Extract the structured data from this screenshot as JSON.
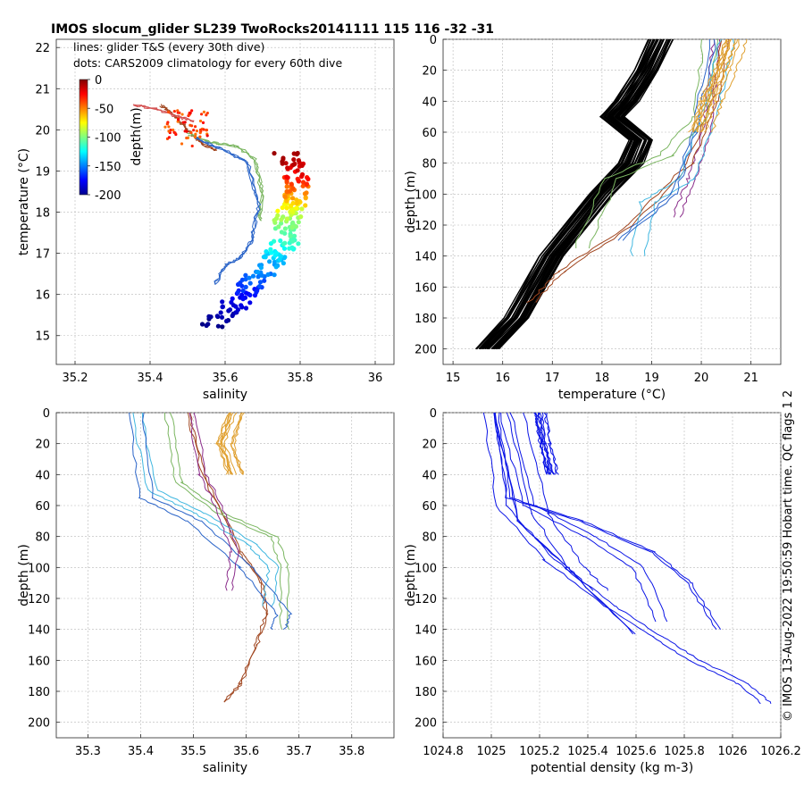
{
  "chart_data": {
    "title": "IMOS slocum_glider SL239 TwoRocks20141111 115  116  -32  -31",
    "side_note": "© IMOS 13-Aug-2022 19:50:59 Hobart time. QC flags 1  2",
    "panels": [
      {
        "id": "ts",
        "type": "scatter",
        "xlabel": "salinity",
        "ylabel": "temperature (°C)",
        "xlim": [
          35.15,
          36.05
        ],
        "ylim": [
          14.3,
          22.2
        ],
        "xticks": [
          35.2,
          35.4,
          35.6,
          35.8,
          36
        ],
        "xticklabels": [
          "35.2",
          "35.4",
          "35.6",
          "35.8",
          "36"
        ],
        "yticks": [
          15,
          16,
          17,
          18,
          19,
          20,
          21,
          22
        ],
        "yticklabels": [
          "15",
          "16",
          "17",
          "18",
          "19",
          "20",
          "21",
          "22"
        ],
        "legend_lines": [
          "lines: glider T&S (every 30th dive)",
          "dots: CARS2009 climatology for every 60th dive"
        ],
        "colorbar": {
          "label": "depth(m)",
          "ticks": [
            0,
            -50,
            -100,
            -150,
            -200
          ],
          "ticklabels": [
            "0",
            "-50",
            "-100",
            "-150",
            "-200"
          ],
          "colormap": "jet"
        },
        "climatology": [
          {
            "salinity": 35.57,
            "temperature": 15.25,
            "depth": -200
          },
          {
            "salinity": 35.62,
            "temperature": 15.7,
            "depth": -185
          },
          {
            "salinity": 35.66,
            "temperature": 16.1,
            "depth": -170
          },
          {
            "salinity": 35.7,
            "temperature": 16.5,
            "depth": -150
          },
          {
            "salinity": 35.73,
            "temperature": 16.9,
            "depth": -135
          },
          {
            "salinity": 35.76,
            "temperature": 17.3,
            "depth": -115
          },
          {
            "salinity": 35.76,
            "temperature": 17.7,
            "depth": -100
          },
          {
            "salinity": 35.77,
            "temperature": 18.0,
            "depth": -85
          },
          {
            "salinity": 35.78,
            "temperature": 18.3,
            "depth": -65
          },
          {
            "salinity": 35.79,
            "temperature": 18.6,
            "depth": -45
          },
          {
            "salinity": 35.79,
            "temperature": 19.0,
            "depth": -20
          },
          {
            "salinity": 35.76,
            "temperature": 19.4,
            "depth": -5
          }
        ],
        "glider_lines": [
          {
            "color": "#a0451e",
            "salinity": [
              35.43,
              35.47,
              35.5,
              35.52,
              35.55,
              35.58
            ],
            "temperature": [
              20.6,
              20.3,
              20.0,
              19.8,
              19.6,
              19.5
            ]
          },
          {
            "color": "#7bb661",
            "salinity": [
              35.5,
              35.56,
              35.63,
              35.68,
              35.7,
              35.69
            ],
            "temperature": [
              19.9,
              19.7,
              19.6,
              19.3,
              18.4,
              17.7
            ]
          },
          {
            "color": "#2a64c8",
            "salinity": [
              35.52,
              35.6,
              35.66,
              35.69,
              35.67,
              35.64,
              35.6,
              35.57
            ],
            "temperature": [
              19.8,
              19.5,
              19.2,
              18.2,
              17.3,
              16.9,
              16.7,
              16.2
            ]
          },
          {
            "color": "#d45050",
            "salinity": [
              35.36,
              35.42,
              35.48,
              35.52
            ],
            "temperature": [
              20.6,
              20.5,
              20.3,
              20.2
            ]
          }
        ]
      },
      {
        "id": "temp_depth",
        "type": "line",
        "xlabel": "temperature (°C)",
        "ylabel": "depth (m)",
        "xlim": [
          14.8,
          21.6
        ],
        "ylim": [
          0,
          210
        ],
        "yreversed": true,
        "xticks": [
          15,
          16,
          17,
          18,
          19,
          20,
          21
        ],
        "xticklabels": [
          "15",
          "16",
          "17",
          "18",
          "19",
          "20",
          "21"
        ],
        "yticks": [
          0,
          20,
          40,
          60,
          80,
          100,
          120,
          140,
          160,
          180,
          200
        ],
        "yticklabels": [
          "0",
          "20",
          "40",
          "60",
          "80",
          "100",
          "120",
          "140",
          "160",
          "180",
          "200"
        ],
        "climatology_profile": {
          "temperature": [
            19.2,
            18.9,
            18.5,
            18.2,
            18.8,
            18.6,
            18.0,
            17.0,
            16.3,
            15.7
          ],
          "depth": [
            0,
            20,
            40,
            50,
            65,
            80,
            100,
            140,
            180,
            200
          ]
        },
        "glider_profiles": [
          {
            "color": "#8b2d8b",
            "temperature": [
              20.4,
              20.3,
              20.2,
              19.9,
              19.6
            ],
            "depth": [
              0,
              30,
              60,
              90,
              115
            ]
          },
          {
            "color": "#a0451e",
            "temperature": [
              20.3,
              20.1,
              19.6,
              18.4,
              17.0,
              16.4
            ],
            "depth": [
              0,
              40,
              80,
              120,
              150,
              170
            ]
          },
          {
            "color": "#7bb661",
            "temperature": [
              20.2,
              20.0,
              19.3,
              18.2,
              17.6
            ],
            "depth": [
              0,
              50,
              75,
              90,
              135
            ]
          },
          {
            "color": "#40b7e0",
            "temperature": [
              20.6,
              20.3,
              19.8,
              19.0,
              18.8
            ],
            "depth": [
              0,
              40,
              90,
              105,
              140
            ]
          },
          {
            "color": "#2a64c8",
            "temperature": [
              20.4,
              20.0,
              19.6,
              18.5
            ],
            "depth": [
              0,
              60,
              100,
              130
            ]
          },
          {
            "color": "#e0a030",
            "temperature": [
              20.7,
              20.5,
              20.2,
              20.0
            ],
            "depth": [
              0,
              20,
              40,
              60
            ]
          }
        ]
      },
      {
        "id": "sal_depth",
        "type": "line",
        "xlabel": "salinity",
        "ylabel": "depth (m)",
        "xlim": [
          35.24,
          35.88
        ],
        "ylim": [
          0,
          210
        ],
        "yreversed": true,
        "xticks": [
          35.3,
          35.4,
          35.5,
          35.6,
          35.7,
          35.8
        ],
        "xticklabels": [
          "35.3",
          "35.4",
          "35.5",
          "35.6",
          "35.7",
          "35.8"
        ],
        "yticks": [
          0,
          20,
          40,
          60,
          80,
          100,
          120,
          140,
          160,
          180,
          200
        ],
        "yticklabels": [
          "0",
          "20",
          "40",
          "60",
          "80",
          "100",
          "120",
          "140",
          "160",
          "180",
          "200"
        ],
        "glider_profiles": [
          {
            "color": "#a0451e",
            "salinity": [
              35.5,
              35.53,
              35.6,
              35.64,
              35.65,
              35.63,
              35.6,
              35.57
            ],
            "depth": [
              0,
              40,
              90,
              110,
              130,
              150,
              175,
              187
            ]
          },
          {
            "color": "#7bb661",
            "salinity": [
              35.45,
              35.47,
              35.55,
              35.65,
              35.67,
              35.67
            ],
            "depth": [
              0,
              45,
              65,
              80,
              100,
              140
            ]
          },
          {
            "color": "#40b7e0",
            "salinity": [
              35.4,
              35.43,
              35.52,
              35.62,
              35.66,
              35.65
            ],
            "depth": [
              0,
              50,
              65,
              85,
              100,
              125
            ]
          },
          {
            "color": "#2a64c8",
            "salinity": [
              35.39,
              35.41,
              35.5,
              35.6,
              35.67,
              35.66
            ],
            "depth": [
              0,
              55,
              70,
              100,
              130,
              140
            ]
          },
          {
            "color": "#8b2d8b",
            "salinity": [
              35.5,
              35.52,
              35.55,
              35.58,
              35.57
            ],
            "depth": [
              0,
              40,
              60,
              90,
              115
            ]
          },
          {
            "color": "#e0a030",
            "salinity": [
              35.58,
              35.56,
              35.58
            ],
            "depth": [
              0,
              20,
              40
            ]
          }
        ]
      },
      {
        "id": "dens_depth",
        "type": "line",
        "xlabel": "potential density (kg m-3)",
        "ylabel": "depth (m)",
        "xlim": [
          1024.8,
          1026.2
        ],
        "ylim": [
          0,
          210
        ],
        "yreversed": true,
        "xticks": [
          1024.8,
          1025,
          1025.2,
          1025.4,
          1025.6,
          1025.8,
          1026,
          1026.2
        ],
        "xticklabels": [
          "1024.8",
          "1025",
          "1025.2",
          "1025.4",
          "1025.6",
          "1025.8",
          "1026",
          "1026.2"
        ],
        "yticks": [
          0,
          20,
          40,
          60,
          80,
          100,
          120,
          140,
          160,
          180,
          200
        ],
        "yticklabels": [
          "0",
          "20",
          "40",
          "60",
          "80",
          "100",
          "120",
          "140",
          "160",
          "180",
          "200"
        ],
        "glider_profiles": [
          {
            "color": "#0a14e6",
            "density": [
              1025.0,
              1025.05,
              1025.25,
              1025.5,
              1025.7,
              1025.85,
              1026.05,
              1026.15
            ],
            "depth": [
              0,
              60,
              95,
              125,
              145,
              160,
              175,
              188
            ]
          },
          {
            "color": "#0a14e6",
            "density": [
              1025.0,
              1025.05,
              1025.35,
              1025.65,
              1025.8,
              1025.92
            ],
            "depth": [
              0,
              55,
              70,
              90,
              110,
              140
            ]
          },
          {
            "color": "#0a14e6",
            "density": [
              1025.05,
              1025.15,
              1025.4,
              1025.6,
              1025.7
            ],
            "depth": [
              0,
              60,
              80,
              100,
              135
            ]
          },
          {
            "color": "#0a14e6",
            "density": [
              1025.1,
              1025.2,
              1025.35,
              1025.45
            ],
            "depth": [
              0,
              65,
              100,
              115
            ]
          },
          {
            "color": "#0a14e6",
            "density": [
              1025.0,
              1025.1,
              1025.3,
              1025.58
            ],
            "depth": [
              0,
              70,
              100,
              143
            ]
          },
          {
            "color": "#0a14e6",
            "density": [
              1025.2,
              1025.22,
              1025.25
            ],
            "depth": [
              0,
              20,
              40
            ]
          }
        ]
      }
    ]
  }
}
